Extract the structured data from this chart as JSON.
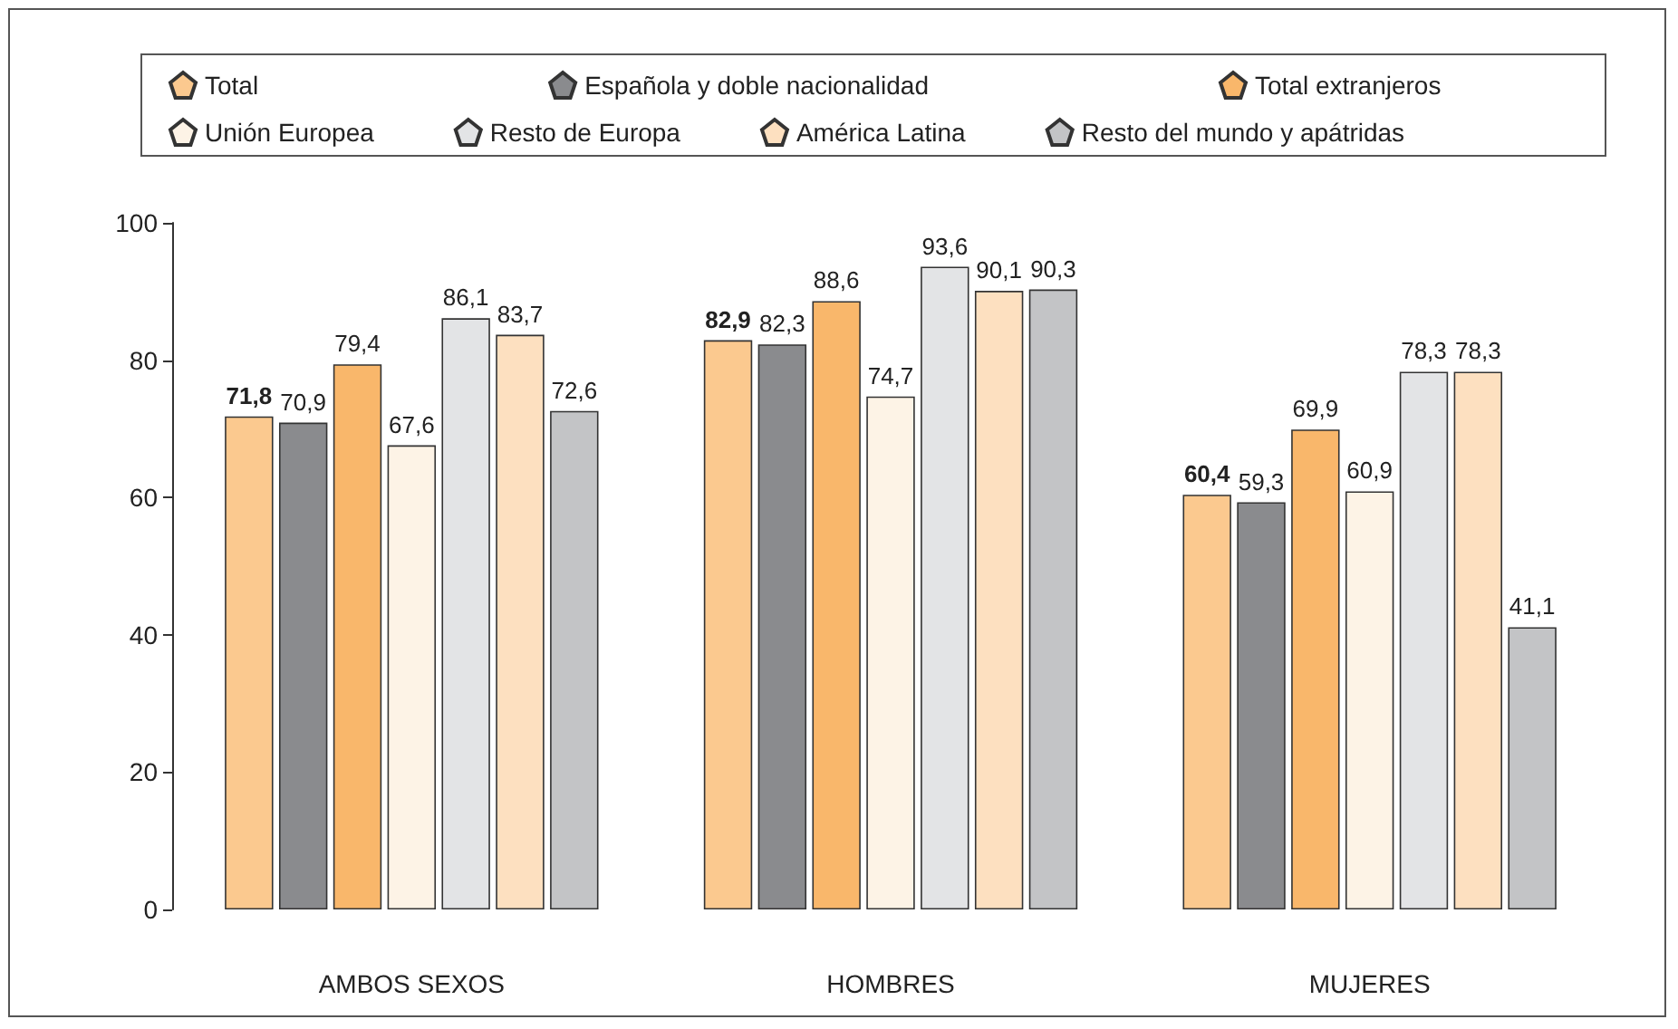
{
  "chart_data": {
    "type": "bar",
    "categories": [
      "AMBOS SEXOS",
      "HOMBRES",
      "MUJERES"
    ],
    "series": [
      {
        "name": "Total",
        "color": "#fbc98f",
        "values": [
          71.8,
          82.9,
          60.4
        ],
        "value_labels": [
          "71,8",
          "82,9",
          "60,4"
        ]
      },
      {
        "name": "Española y doble nacionalidad",
        "color": "#8a8b8e",
        "values": [
          70.9,
          82.3,
          59.3
        ],
        "value_labels": [
          "70,9",
          "82,3",
          "59,3"
        ]
      },
      {
        "name": "Total extranjeros",
        "color": "#f9b76b",
        "values": [
          79.4,
          88.6,
          69.9
        ],
        "value_labels": [
          "79,4",
          "88,6",
          "69,9"
        ]
      },
      {
        "name": "Unión Europea",
        "color": "#fdf3e6",
        "values": [
          67.6,
          74.7,
          60.9
        ],
        "value_labels": [
          "67,6",
          "74,7",
          "60,9"
        ]
      },
      {
        "name": "Resto de Europa",
        "color": "#e3e4e6",
        "values": [
          86.1,
          93.6,
          78.3
        ],
        "value_labels": [
          "86,1",
          "93,6",
          "78,3"
        ]
      },
      {
        "name": "América Latina",
        "color": "#fde0c0",
        "values": [
          83.7,
          90.1,
          78.3
        ],
        "value_labels": [
          "83,7",
          "90,1",
          "78,3"
        ]
      },
      {
        "name": "Resto del mundo y apátridas",
        "color": "#c3c4c6",
        "values": [
          72.6,
          90.3,
          41.1
        ],
        "value_labels": [
          "72,6",
          "90,3",
          "41,1"
        ]
      }
    ],
    "ylim": [
      0,
      100
    ],
    "yticks": [
      0,
      20,
      40,
      60,
      80,
      100
    ],
    "grid": false,
    "legend": "top"
  }
}
